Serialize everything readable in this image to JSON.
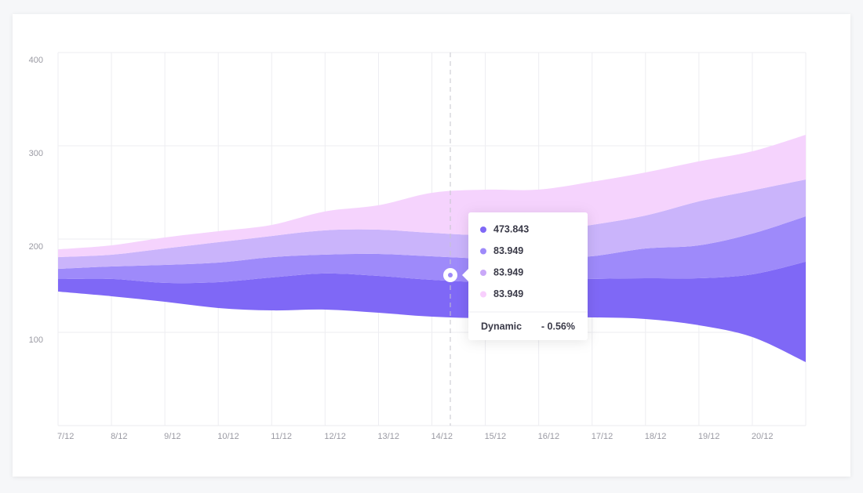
{
  "chart_data": {
    "type": "stream",
    "categories": [
      "7/12",
      "8/12",
      "9/12",
      "10/12",
      "11/12",
      "12/12",
      "13/12",
      "14/12",
      "15/12",
      "16/12",
      "17/12",
      "18/12",
      "19/12",
      "20/12",
      null
    ],
    "baseline": [
      143.7,
      138.7,
      132.8,
      126.1,
      123.5,
      124.4,
      121,
      116.8,
      115.1,
      116,
      116,
      114.3,
      107.6,
      95,
      68.1
    ],
    "series": [
      {
        "color": "#7f68f6",
        "values": [
          13.4,
          18.5,
          20.2,
          27.7,
          35.3,
          38.7,
          39.5,
          39.5,
          38.7,
          39.5,
          41.2,
          43.7,
          50.4,
          67.2,
          107.6
        ]
      },
      {
        "color": "#9e8afa",
        "values": [
          10.9,
          13.4,
          19.3,
          21,
          21.8,
          20.2,
          23.5,
          25.2,
          25.2,
          23.5,
          24.4,
          31.9,
          35.3,
          43.7,
          48.7
        ]
      },
      {
        "color": "#cab4fb",
        "values": [
          12.6,
          12.6,
          17.6,
          21.8,
          22.7,
          26.1,
          26.1,
          25.2,
          25.2,
          28.6,
          33.6,
          35.3,
          47.1,
          46.2,
          39.5
        ]
      },
      {
        "color": "#f5d3fd",
        "values": [
          8.4,
          10.1,
          11.8,
          11.8,
          11.8,
          20.2,
          26.1,
          42.9,
          48.7,
          45.4,
          46.2,
          46.2,
          42.9,
          42,
          47.9
        ]
      }
    ],
    "ylim": [
      0,
      400
    ],
    "yticks": [
      100,
      200,
      300,
      400
    ],
    "grid": true,
    "tooltip": {
      "items": [
        {
          "color": "#7f68f6",
          "label": "473.843"
        },
        {
          "color": "#9e8afa",
          "label": "83.949"
        },
        {
          "color": "#c9a8f8",
          "label": "83.949"
        },
        {
          "color": "#f8cffd",
          "label": "83.949"
        }
      ],
      "footer_label": "Dynamic",
      "footer_value": "- 0.56%"
    }
  }
}
